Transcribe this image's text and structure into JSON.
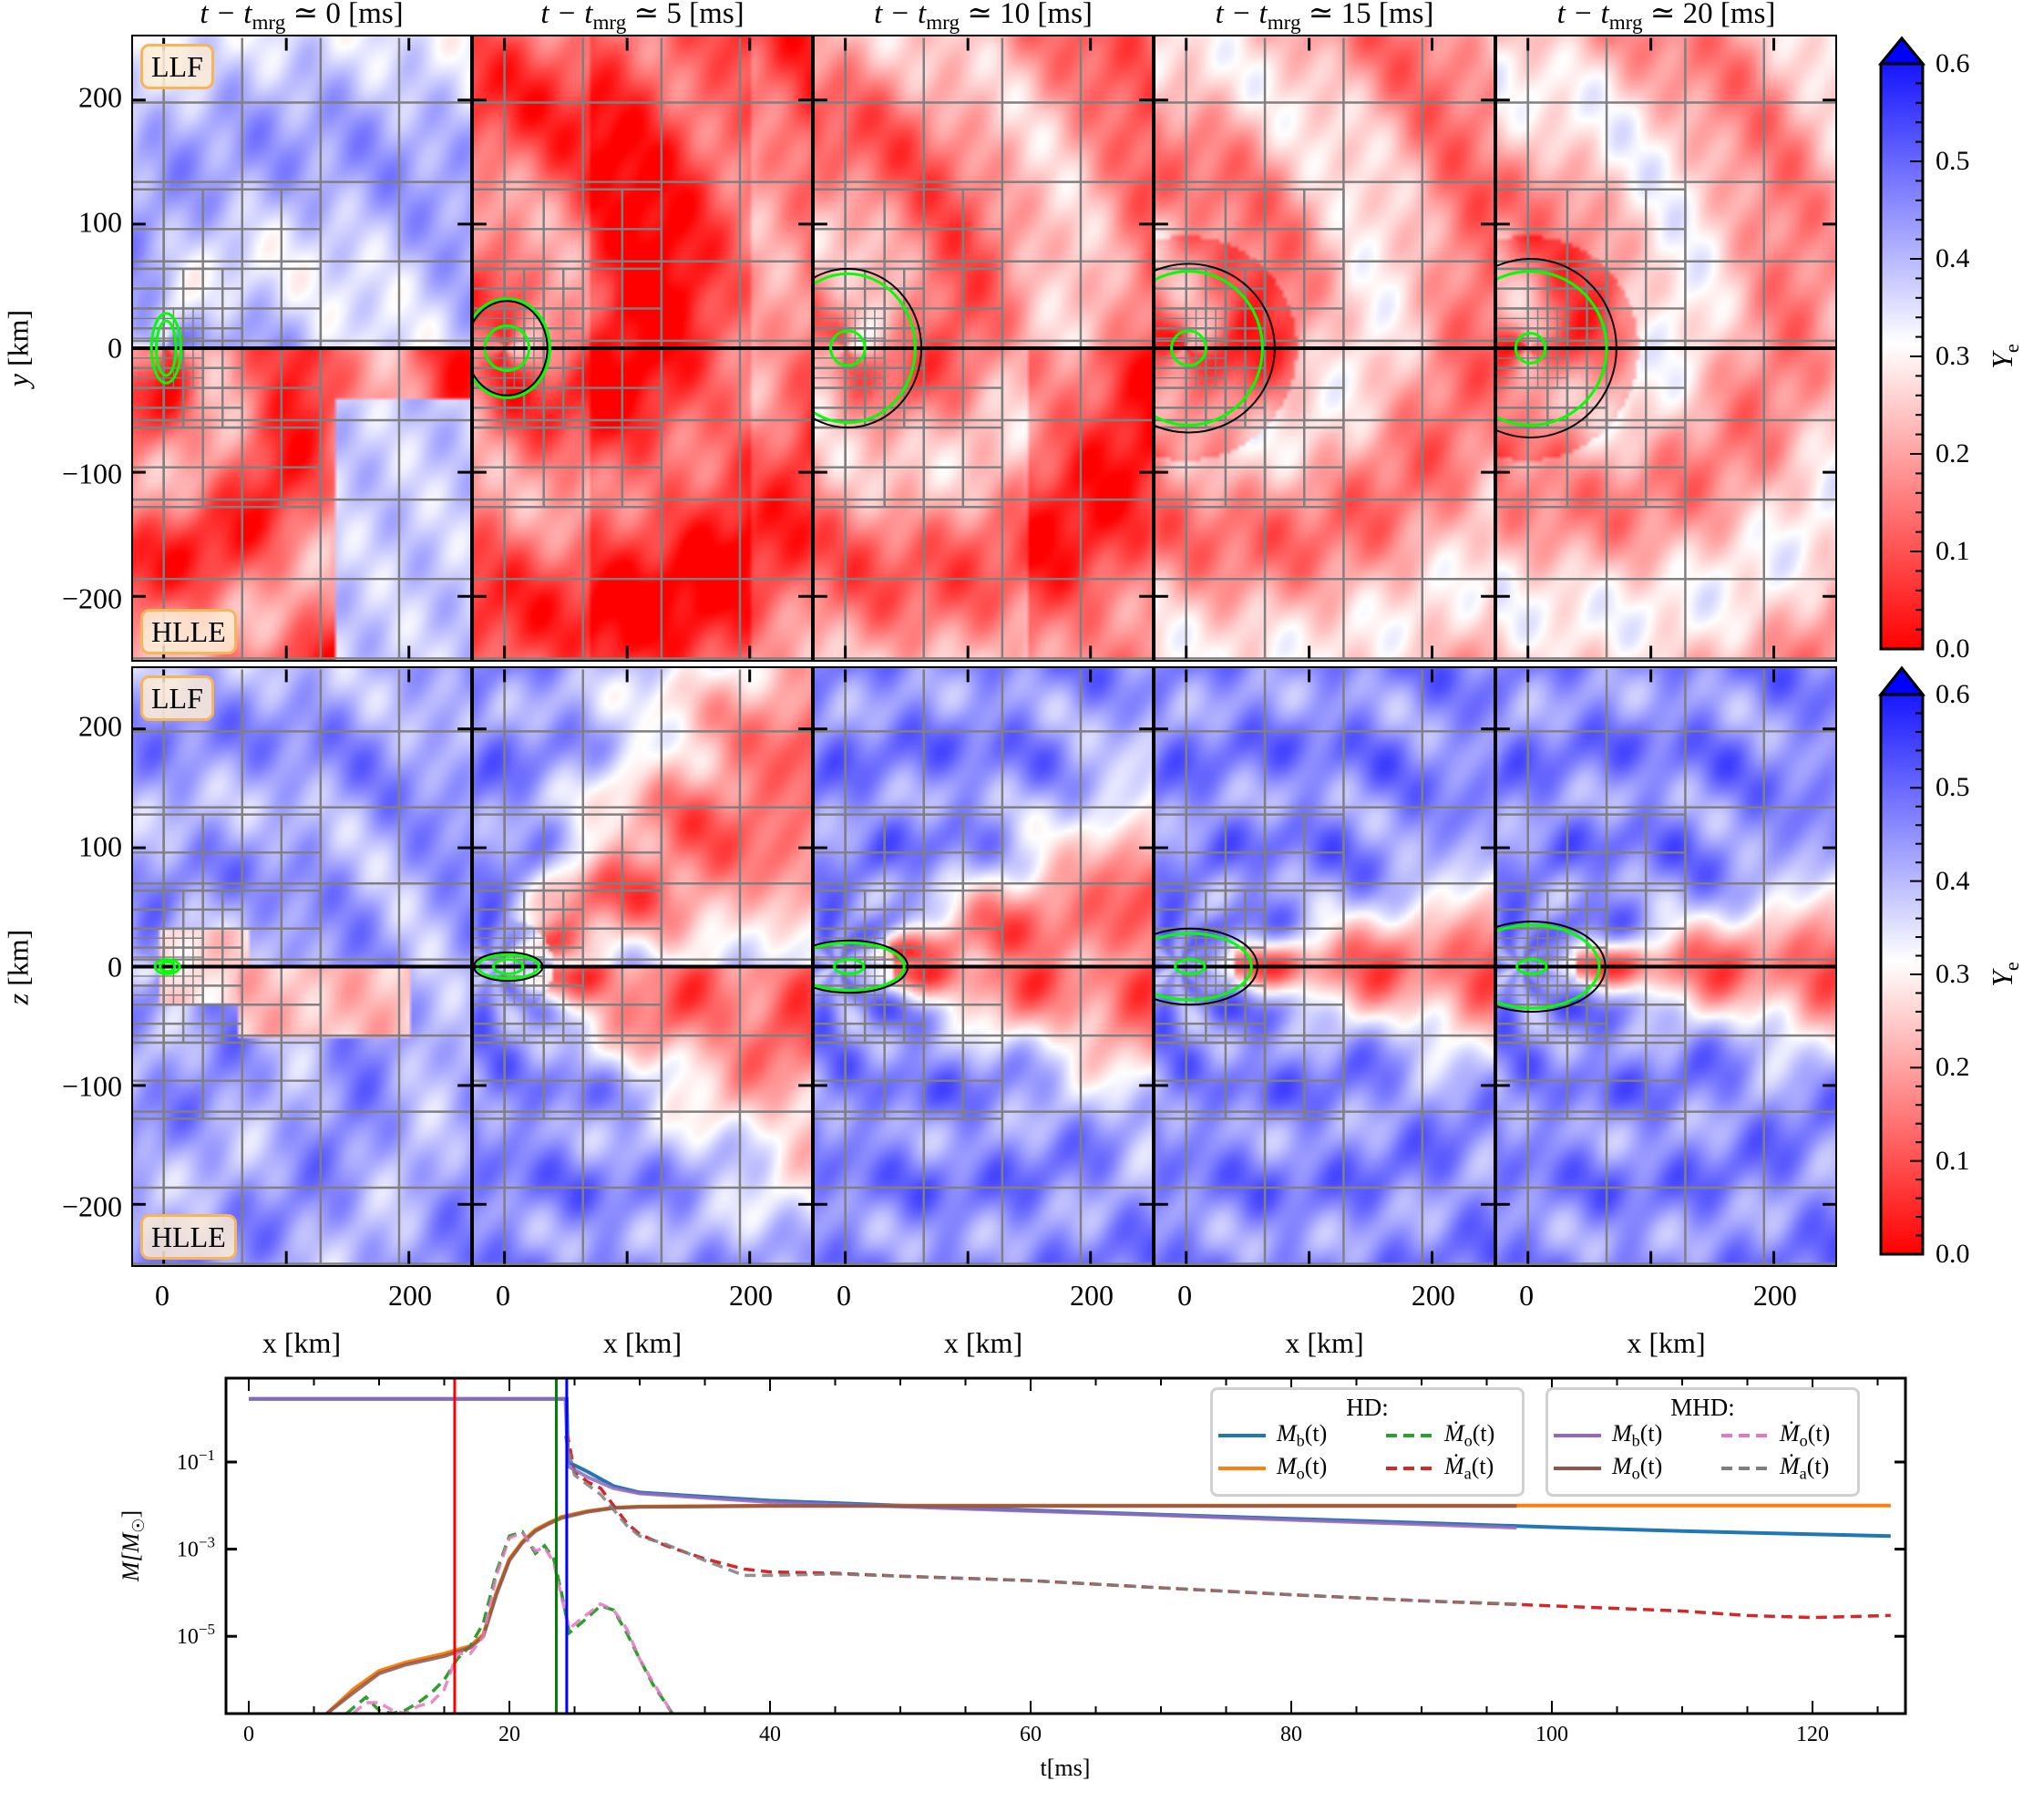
{
  "figure": {
    "panel_titles": [
      {
        "pre": "t − t",
        "sub": "mrg",
        "post": " ≃ 0 [ms]"
      },
      {
        "pre": "t − t",
        "sub": "mrg",
        "post": " ≃ 5 [ms]"
      },
      {
        "pre": "t − t",
        "sub": "mrg",
        "post": " ≃ 10 [ms]"
      },
      {
        "pre": "t − t",
        "sub": "mrg",
        "post": " ≃ 15 [ms]"
      },
      {
        "pre": "t − t",
        "sub": "mrg",
        "post": " ≃ 20 [ms]"
      }
    ],
    "scheme_labels": {
      "upper": "LLF",
      "lower": "HLLE"
    },
    "rows": [
      {
        "ylabel": "y [km]",
        "plane": "xy"
      },
      {
        "ylabel": "z [km]",
        "plane": "xz"
      }
    ],
    "xlabel": "x [km]",
    "y_tick_labels": [
      "200",
      "100",
      "0",
      "−100",
      "−200"
    ],
    "y_tick_values": [
      200,
      100,
      0,
      -100,
      -200
    ],
    "x_tick_labels": [
      "0",
      "200"
    ],
    "x_tick_values": [
      0,
      200
    ],
    "xlim": [
      -25,
      250
    ],
    "ylim": [
      -250,
      250
    ],
    "colorbar": {
      "label_main": "Y",
      "label_sub": "e",
      "ticks": [
        "0.6",
        "0.5",
        "0.4",
        "0.3",
        "0.2",
        "0.1",
        "0.0"
      ],
      "range": [
        0.0,
        0.6
      ],
      "extend": "max",
      "colormap": "bwr",
      "colors": {
        "low": "#ff0000",
        "mid": "#ffffff",
        "high": "#0000ff"
      }
    },
    "grid_color": "#808080",
    "contour_colors": [
      "#00ff00",
      "#000000"
    ]
  },
  "chart_data": {
    "type": "line",
    "xlabel": "t[ms]",
    "ylabel": {
      "main": "M[M",
      "sub": "☉",
      "post": "]"
    },
    "yscale": "log",
    "xlim": [
      -2,
      127
    ],
    "ylim": [
      1.7e-07,
      8
    ],
    "x_ticks": [
      0,
      20,
      40,
      60,
      80,
      100,
      120
    ],
    "y_ticks": [
      {
        "value": 0.1,
        "base": "10",
        "exp": "−1"
      },
      {
        "value": 0.001,
        "base": "10",
        "exp": "−3"
      },
      {
        "value": 1e-05,
        "base": "10",
        "exp": "−5"
      }
    ],
    "vertical_lines": [
      {
        "t": 15.8,
        "color": "#ff0000"
      },
      {
        "t": 23.6,
        "color": "#008000"
      },
      {
        "t": 24.4,
        "color": "#0000ff"
      }
    ],
    "legend_groups": [
      {
        "title": "HD:",
        "entries": [
          {
            "main": "M",
            "sub": "b",
            "post": "(t)",
            "series": 0
          },
          {
            "main": "M",
            "sub": "o",
            "post": "(t)",
            "series": 1
          },
          {
            "main": "Ṁ",
            "sub": "o",
            "post": "(t)",
            "series": 2
          },
          {
            "main": "Ṁ",
            "sub": "a",
            "post": "(t)",
            "series": 3
          }
        ]
      },
      {
        "title": "MHD:",
        "entries": [
          {
            "main": "M",
            "sub": "b",
            "post": "(t)",
            "series": 4
          },
          {
            "main": "M",
            "sub": "o",
            "post": "(t)",
            "series": 5
          },
          {
            "main": "Ṁ",
            "sub": "o",
            "post": "(t)",
            "series": 6
          },
          {
            "main": "Ṁ",
            "sub": "a",
            "post": "(t)",
            "series": 7
          }
        ]
      }
    ],
    "series": [
      {
        "group": "HD",
        "color": "#1f77b4",
        "dash": "solid",
        "t": [
          0,
          24.4,
          24.5,
          26,
          28,
          30,
          35,
          40,
          50,
          60,
          70,
          80,
          90,
          100,
          110,
          120,
          126
        ],
        "M": [
          2.8,
          2.8,
          0.1,
          0.06,
          0.028,
          0.02,
          0.016,
          0.013,
          0.01,
          0.0078,
          0.0062,
          0.005,
          0.004,
          0.0032,
          0.0026,
          0.0022,
          0.002
        ]
      },
      {
        "group": "HD",
        "color": "#ff7f0e",
        "dash": "solid",
        "t": [
          6,
          8,
          10,
          12,
          15,
          17,
          18,
          19,
          20,
          21,
          22,
          23,
          24,
          26,
          28,
          30,
          40,
          126
        ],
        "M": [
          1.7e-07,
          6e-07,
          1.6e-06,
          2.5e-06,
          4e-06,
          6e-06,
          1.1e-05,
          0.0001,
          0.0006,
          0.0015,
          0.0028,
          0.004,
          0.0055,
          0.0075,
          0.009,
          0.0095,
          0.01,
          0.01
        ]
      },
      {
        "group": "HD",
        "color": "#2ca02c",
        "dash": "dashed",
        "t": [
          7.5,
          9,
          10,
          11,
          12,
          13,
          14,
          15,
          16,
          17,
          18,
          19,
          20,
          21,
          22,
          22.7,
          23.4,
          24,
          24.6,
          25.5,
          27,
          28,
          29,
          30,
          31,
          32.5
        ],
        "M": [
          1.7e-07,
          4e-07,
          2e-07,
          1.7e-07,
          2e-07,
          3e-07,
          5e-07,
          1e-06,
          3e-06,
          6e-06,
          2e-05,
          0.0003,
          0.002,
          0.0025,
          0.0008,
          0.0012,
          0.0006,
          0.0001,
          1.2e-05,
          2e-05,
          5e-05,
          4e-05,
          1.2e-05,
          3e-06,
          8e-07,
          1.7e-07
        ]
      },
      {
        "group": "HD",
        "color": "#d62728",
        "dash": "dashed",
        "t": [
          24.4,
          25,
          26,
          27,
          28,
          29,
          30,
          32,
          35,
          38,
          40,
          45,
          50,
          60,
          70,
          80,
          90,
          100,
          110,
          115,
          120,
          126
        ],
        "M": [
          0.5,
          0.06,
          0.035,
          0.025,
          0.01,
          0.004,
          0.0022,
          0.0012,
          0.0006,
          0.00035,
          0.0003,
          0.00028,
          0.00024,
          0.00019,
          0.00013,
          9e-05,
          6.5e-05,
          5e-05,
          3.8e-05,
          3e-05,
          2.7e-05,
          3e-05
        ]
      },
      {
        "group": "MHD",
        "color": "#9467bd",
        "dash": "solid",
        "t": [
          0,
          24.3,
          24.5,
          26,
          28,
          30,
          35,
          40,
          50,
          60,
          70,
          80,
          90,
          97.3
        ],
        "M": [
          2.8,
          2.8,
          0.08,
          0.045,
          0.025,
          0.019,
          0.015,
          0.012,
          0.0095,
          0.0075,
          0.006,
          0.0047,
          0.0037,
          0.0031
        ]
      },
      {
        "group": "MHD",
        "color": "#8c564b",
        "dash": "solid",
        "t": [
          6,
          8,
          10,
          12,
          15,
          17,
          18,
          19,
          20,
          21,
          22,
          23,
          24,
          26,
          28,
          30,
          40,
          97.3
        ],
        "M": [
          1.7e-07,
          5e-07,
          1.4e-06,
          2.2e-06,
          3.5e-06,
          5.5e-06,
          1e-05,
          9e-05,
          0.00055,
          0.0014,
          0.0026,
          0.0038,
          0.0052,
          0.0072,
          0.0088,
          0.0093,
          0.0098,
          0.0098
        ]
      },
      {
        "group": "MHD",
        "color": "#e377c2",
        "dash": "dashed",
        "t": [
          8,
          9,
          10,
          11,
          12,
          13,
          14,
          15,
          16,
          17,
          18,
          19,
          20,
          21,
          22,
          22.7,
          23.4,
          24,
          24.6,
          25.5,
          27,
          28,
          29,
          30,
          31,
          32.5
        ],
        "M": [
          1.7e-07,
          3e-07,
          3e-07,
          2e-07,
          1.7e-07,
          2.5e-07,
          3e-07,
          6e-07,
          4e-06,
          4e-06,
          1e-05,
          0.00025,
          0.0018,
          0.0024,
          0.0009,
          0.0011,
          0.0005,
          8e-05,
          1.5e-05,
          2.5e-05,
          5.5e-05,
          4e-05,
          1.5e-05,
          3e-06,
          9e-07,
          1.7e-07
        ]
      },
      {
        "group": "MHD",
        "color": "#7f7f7f",
        "dash": "dashed",
        "t": [
          24.3,
          25,
          26,
          27,
          28,
          29,
          30,
          32,
          35,
          38,
          40,
          45,
          50,
          60,
          70,
          80,
          90,
          97.3
        ],
        "M": [
          0.4,
          0.05,
          0.03,
          0.018,
          0.008,
          0.0035,
          0.002,
          0.0013,
          0.00055,
          0.00025,
          0.00025,
          0.00027,
          0.00024,
          0.00019,
          0.00013,
          9e-05,
          6.5e-05,
          5.5e-05
        ]
      }
    ]
  }
}
